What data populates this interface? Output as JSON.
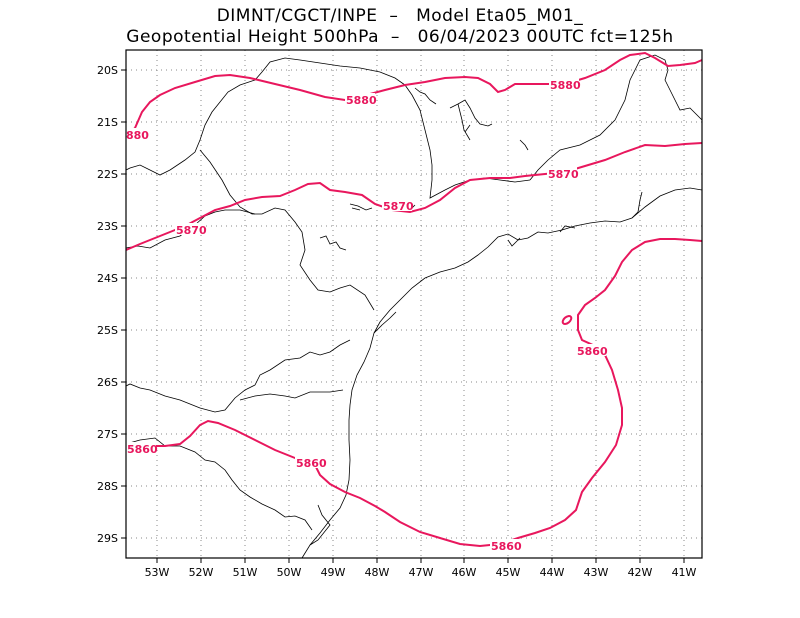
{
  "title_line1": "DIMNT/CGCT/INPE  –   Model Eta05_M01_",
  "title_line2": "Geopotential Height 500hPa  –   06/04/2023 00UTC fct=125h",
  "colors": {
    "contour": "#e8175d",
    "coast": "#000000",
    "grid": "#888888"
  },
  "lat_labels": [
    "20S",
    "21S",
    "22S",
    "23S",
    "24S",
    "25S",
    "26S",
    "27S",
    "28S",
    "29S"
  ],
  "lon_labels": [
    "53W",
    "52W",
    "51W",
    "50W",
    "49W",
    "48W",
    "47W",
    "46W",
    "45W",
    "44W",
    "43W",
    "42W",
    "41W"
  ],
  "contour_labels": [
    {
      "text": "5880",
      "id": "c5880-a"
    },
    {
      "text": "5880",
      "id": "c5880-b"
    },
    {
      "text": "880",
      "id": "c5880-c"
    },
    {
      "text": "5870",
      "id": "c5870-a"
    },
    {
      "text": "5870",
      "id": "c5870-b"
    },
    {
      "text": "5870",
      "id": "c5870-c"
    },
    {
      "text": "5860",
      "id": "c5860-a"
    },
    {
      "text": "5860",
      "id": "c5860-b"
    },
    {
      "text": "5860",
      "id": "c5860-c"
    },
    {
      "text": "5860",
      "id": "c5860-d"
    }
  ]
}
